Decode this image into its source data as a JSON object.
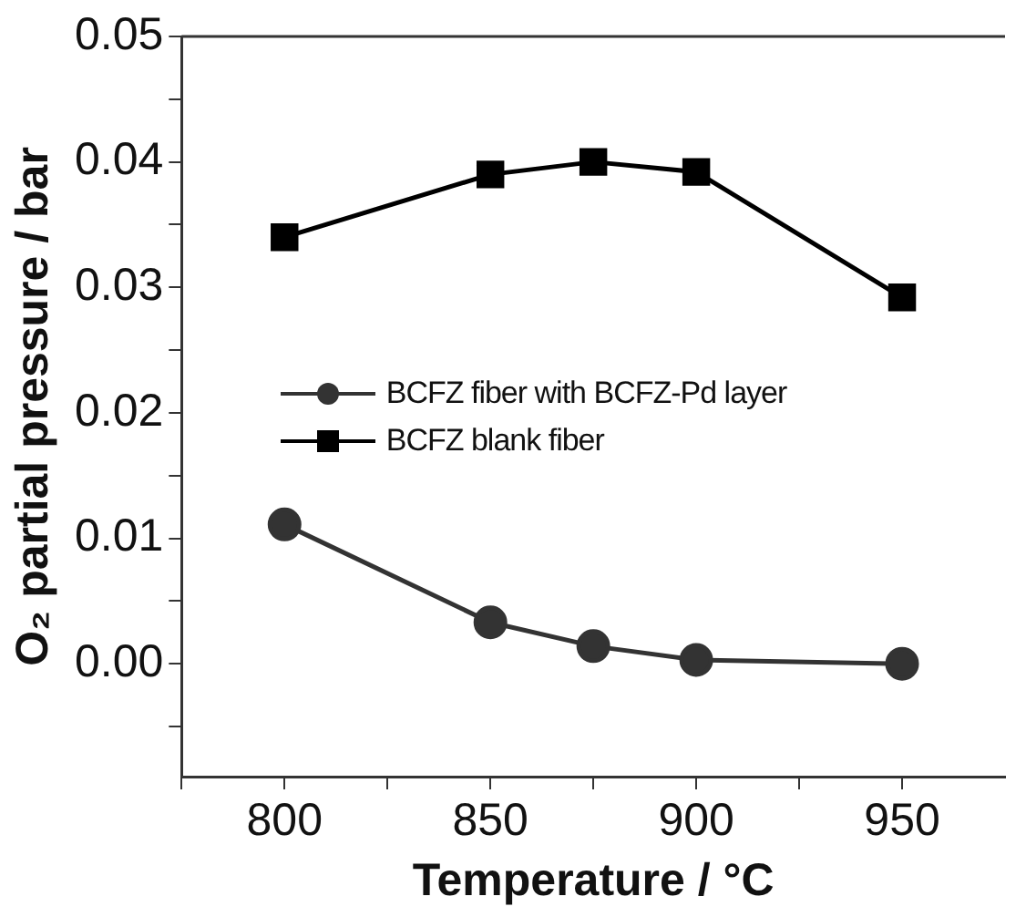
{
  "chart_data": {
    "type": "line",
    "xlabel": "Temperature / °C",
    "ylabel": "O₂ partial pressure / bar",
    "x": [
      800,
      850,
      875,
      900,
      950
    ],
    "series": [
      {
        "name": "BCFZ fiber with BCFZ-Pd layer",
        "color": "#333333",
        "marker": "circle",
        "values": [
          0.0111,
          0.0033,
          0.0014,
          0.0003,
          0.0
        ]
      },
      {
        "name": "BCFZ blank fiber",
        "color": "#000000",
        "marker": "square",
        "values": [
          0.034,
          0.039,
          0.04,
          0.0392,
          0.0292
        ]
      }
    ],
    "xlim": [
      775,
      975
    ],
    "xticks": [
      {
        "value": 775,
        "label": null
      },
      800,
      {
        "value": 825,
        "label": null
      },
      850,
      {
        "value": 875,
        "label": null
      },
      900,
      {
        "value": 925,
        "label": null
      },
      950
    ],
    "ylim": [
      -0.009,
      0.05
    ],
    "yticks": [
      {
        "value": -0.005,
        "label": null
      },
      "0.00",
      {
        "value": 0.005,
        "label": null
      },
      0.01,
      {
        "value": 0.015,
        "label": null
      },
      0.02,
      {
        "value": 0.025,
        "label": null
      },
      0.03,
      {
        "value": 0.035,
        "label": null
      },
      0.04,
      {
        "value": 0.045,
        "label": null
      },
      0.05
    ],
    "legend": "center left",
    "grid": false,
    "line_style": "solid"
  }
}
